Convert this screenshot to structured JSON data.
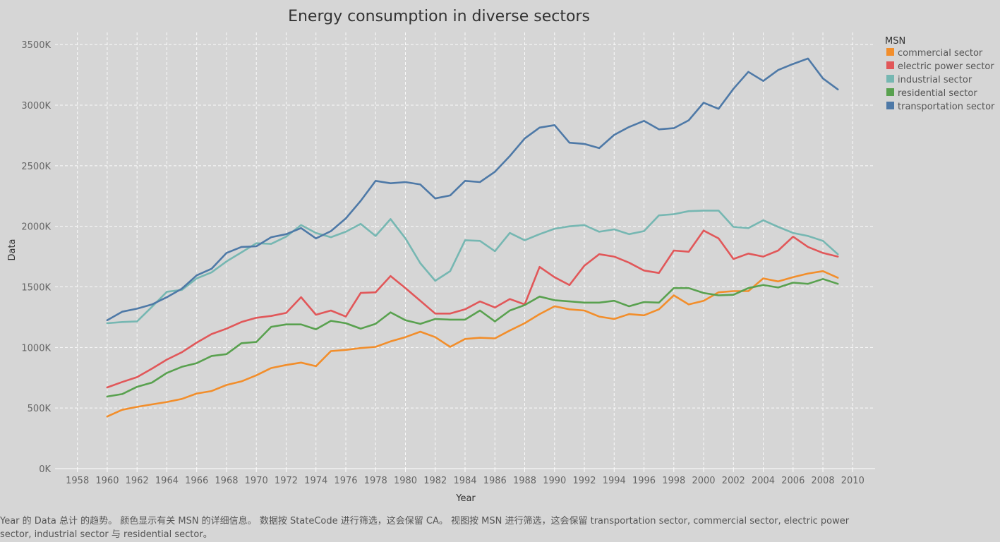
{
  "caption": "Year 的 Data 总计 的趋势。 颜色显示有关 MSN 的详细信息。 数据按 StateCode 进行筛选，这会保留 CA。 视图按 MSN 进行筛选，这会保留 transportation sector, commercial sector, electric power sector, industrial sector 与 residential sector。",
  "chart_data": {
    "type": "line",
    "title": "Energy consumption in diverse sectors",
    "xlabel": "Year",
    "ylabel": "Data",
    "xlim": [
      1956.5,
      2011.5
    ],
    "ylim": [
      0,
      3600000
    ],
    "x_ticks": [
      "1958",
      "1960",
      "1962",
      "1964",
      "1966",
      "1968",
      "1970",
      "1972",
      "1974",
      "1976",
      "1978",
      "1980",
      "1982",
      "1984",
      "1986",
      "1988",
      "1990",
      "1992",
      "1994",
      "1996",
      "1998",
      "2000",
      "2002",
      "2004",
      "2006",
      "2008",
      "2010"
    ],
    "y_ticks": [
      {
        "value": 0,
        "label": "0K"
      },
      {
        "value": 500000,
        "label": "500K"
      },
      {
        "value": 1000000,
        "label": "1000K"
      },
      {
        "value": 1500000,
        "label": "1500K"
      },
      {
        "value": 2000000,
        "label": "2000K"
      },
      {
        "value": 2500000,
        "label": "2500K"
      },
      {
        "value": 3000000,
        "label": "3000K"
      },
      {
        "value": 3500000,
        "label": "3500K"
      }
    ],
    "grid": true,
    "legend_title": "MSN",
    "legend_position": "top-right",
    "x": [
      1960,
      1961,
      1962,
      1963,
      1964,
      1965,
      1966,
      1967,
      1968,
      1969,
      1970,
      1971,
      1972,
      1973,
      1974,
      1975,
      1976,
      1977,
      1978,
      1979,
      1980,
      1981,
      1982,
      1983,
      1984,
      1985,
      1986,
      1987,
      1988,
      1989,
      1990,
      1991,
      1992,
      1993,
      1994,
      1995,
      1996,
      1997,
      1998,
      1999,
      2000,
      2001,
      2002,
      2003,
      2004,
      2005,
      2006,
      2007,
      2008,
      2009
    ],
    "series": [
      {
        "name": "commercial sector",
        "color": "#f28e2b",
        "values": [
          430000,
          485000,
          510000,
          530000,
          550000,
          575000,
          620000,
          640000,
          690000,
          720000,
          770000,
          830000,
          855000,
          875000,
          845000,
          970000,
          980000,
          995000,
          1005000,
          1050000,
          1085000,
          1130000,
          1085000,
          1005000,
          1070000,
          1080000,
          1075000,
          1140000,
          1200000,
          1275000,
          1340000,
          1315000,
          1305000,
          1255000,
          1235000,
          1275000,
          1265000,
          1315000,
          1430000,
          1355000,
          1385000,
          1455000,
          1465000,
          1465000,
          1570000,
          1545000,
          1580000,
          1610000,
          1630000,
          1575000
        ]
      },
      {
        "name": "electric power sector",
        "color": "#e15759",
        "values": [
          670000,
          715000,
          755000,
          825000,
          900000,
          960000,
          1040000,
          1110000,
          1155000,
          1210000,
          1245000,
          1260000,
          1285000,
          1415000,
          1270000,
          1305000,
          1255000,
          1450000,
          1455000,
          1590000,
          1490000,
          1385000,
          1280000,
          1280000,
          1315000,
          1380000,
          1330000,
          1400000,
          1355000,
          1665000,
          1580000,
          1515000,
          1675000,
          1770000,
          1750000,
          1700000,
          1635000,
          1615000,
          1800000,
          1790000,
          1965000,
          1900000,
          1730000,
          1775000,
          1750000,
          1800000,
          1915000,
          1830000,
          1780000,
          1750000
        ]
      },
      {
        "name": "industrial sector",
        "color": "#76b7b2",
        "values": [
          1200000,
          1210000,
          1215000,
          1335000,
          1460000,
          1475000,
          1570000,
          1620000,
          1710000,
          1785000,
          1860000,
          1855000,
          1915000,
          2010000,
          1945000,
          1910000,
          1955000,
          2020000,
          1920000,
          2060000,
          1900000,
          1695000,
          1550000,
          1630000,
          1885000,
          1880000,
          1795000,
          1945000,
          1885000,
          1935000,
          1980000,
          2000000,
          2010000,
          1955000,
          1975000,
          1935000,
          1960000,
          2090000,
          2100000,
          2125000,
          2130000,
          2130000,
          1995000,
          1985000,
          2050000,
          1995000,
          1945000,
          1920000,
          1880000,
          1770000
        ]
      },
      {
        "name": "residential sector",
        "color": "#59a14f",
        "values": [
          595000,
          615000,
          675000,
          710000,
          790000,
          840000,
          870000,
          930000,
          945000,
          1035000,
          1045000,
          1170000,
          1190000,
          1190000,
          1150000,
          1220000,
          1200000,
          1155000,
          1195000,
          1290000,
          1225000,
          1195000,
          1235000,
          1230000,
          1230000,
          1305000,
          1215000,
          1305000,
          1350000,
          1420000,
          1390000,
          1380000,
          1370000,
          1370000,
          1385000,
          1340000,
          1375000,
          1370000,
          1490000,
          1490000,
          1450000,
          1430000,
          1435000,
          1490000,
          1515000,
          1495000,
          1535000,
          1525000,
          1565000,
          1525000
        ]
      },
      {
        "name": "transportation sector",
        "color": "#4e79a7",
        "values": [
          1225000,
          1295000,
          1320000,
          1355000,
          1415000,
          1485000,
          1595000,
          1650000,
          1780000,
          1830000,
          1835000,
          1910000,
          1935000,
          1985000,
          1900000,
          1960000,
          2065000,
          2210000,
          2375000,
          2355000,
          2365000,
          2345000,
          2230000,
          2255000,
          2375000,
          2365000,
          2450000,
          2580000,
          2725000,
          2815000,
          2835000,
          2690000,
          2680000,
          2645000,
          2755000,
          2820000,
          2870000,
          2800000,
          2810000,
          2875000,
          3020000,
          2970000,
          3135000,
          3275000,
          3200000,
          3290000,
          3340000,
          3385000,
          3220000,
          3130000
        ]
      }
    ]
  }
}
